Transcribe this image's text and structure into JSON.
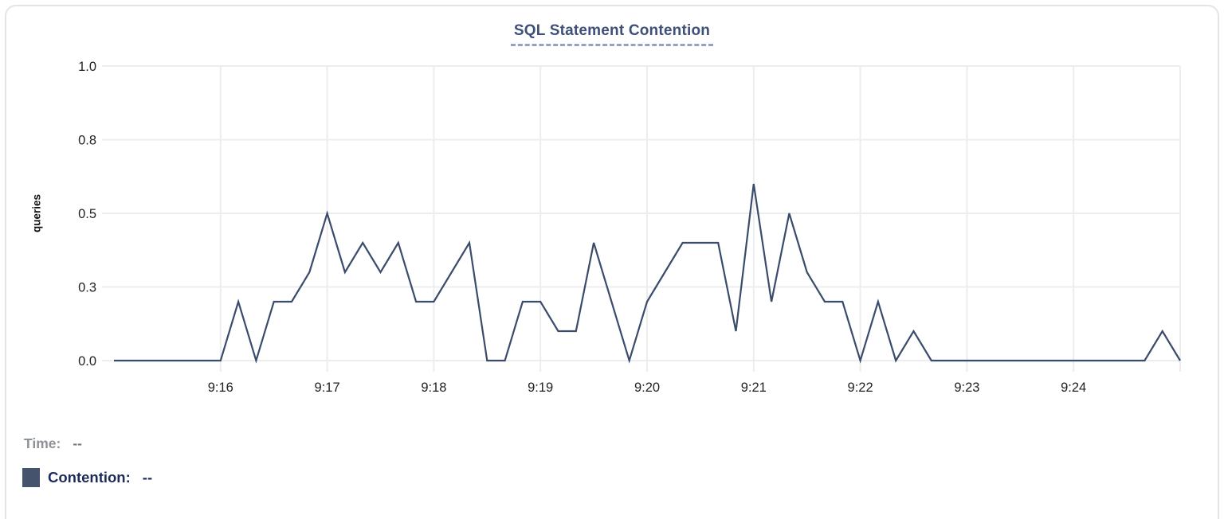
{
  "header": {
    "title": "SQL Statement Contention"
  },
  "legend": {
    "time": {
      "label": "Time:",
      "value": "--"
    },
    "contention": {
      "label": "Contention:",
      "value": "--"
    }
  },
  "colors": {
    "series_line": "#3a4b6b",
    "legend_swatch": "#46536d",
    "title_text": "#3f5078",
    "title_underline": "#979fc2",
    "grid": "#ededed",
    "tick_text": "#222222",
    "time_text": "#8e9196",
    "time_value": "#74787d",
    "contention_text": "#1c2b5a",
    "card_border": "#e3e4e6"
  },
  "chart_data": {
    "type": "line",
    "title": "SQL Statement Contention",
    "xlabel": "",
    "ylabel": "queries",
    "ylim": [
      0,
      1.0
    ],
    "grid": true,
    "legend_position": "bottom-left",
    "series_name": "Contention",
    "x": [
      "9:15:00",
      "9:15:10",
      "9:15:20",
      "9:15:30",
      "9:15:40",
      "9:15:50",
      "9:16:00",
      "9:16:10",
      "9:16:20",
      "9:16:30",
      "9:16:40",
      "9:16:50",
      "9:17:00",
      "9:17:10",
      "9:17:20",
      "9:17:30",
      "9:17:40",
      "9:17:50",
      "9:18:00",
      "9:18:10",
      "9:18:20",
      "9:18:30",
      "9:18:40",
      "9:18:50",
      "9:19:00",
      "9:19:10",
      "9:19:20",
      "9:19:30",
      "9:19:40",
      "9:19:50",
      "9:20:00",
      "9:20:10",
      "9:20:20",
      "9:20:30",
      "9:20:40",
      "9:20:50",
      "9:21:00",
      "9:21:10",
      "9:21:20",
      "9:21:30",
      "9:21:40",
      "9:21:50",
      "9:22:00",
      "9:22:10",
      "9:22:20",
      "9:22:30",
      "9:22:40",
      "9:22:50",
      "9:23:00",
      "9:23:10",
      "9:23:20",
      "9:23:30",
      "9:23:40",
      "9:23:50",
      "9:24:00",
      "9:24:10",
      "9:24:20",
      "9:24:30",
      "9:24:40",
      "9:24:50",
      "9:25:00"
    ],
    "values": [
      0,
      0,
      0,
      0,
      0,
      0,
      0,
      0.2,
      0,
      0.2,
      0.2,
      0.3,
      0.5,
      0.3,
      0.4,
      0.3,
      0.4,
      0.2,
      0.2,
      0.3,
      0.4,
      0,
      0,
      0.2,
      0.2,
      0.1,
      0.1,
      0.4,
      0.2,
      0,
      0.2,
      0.3,
      0.4,
      0.4,
      0.4,
      0.1,
      0.6,
      0.2,
      0.5,
      0.3,
      0.2,
      0.2,
      0,
      0.2,
      0,
      0.1,
      0,
      0,
      0,
      0,
      0,
      0,
      0,
      0,
      0,
      0,
      0,
      0,
      0,
      0.1,
      0
    ],
    "xticks": [
      "9:16",
      "9:17",
      "9:18",
      "9:19",
      "9:20",
      "9:21",
      "9:22",
      "9:23",
      "9:24"
    ],
    "yticks": [
      {
        "value": 0.0,
        "label": "0.0"
      },
      {
        "value": 0.25,
        "label": "0.3"
      },
      {
        "value": 0.5,
        "label": "0.5"
      },
      {
        "value": 0.75,
        "label": "0.8"
      },
      {
        "value": 1.0,
        "label": "1.0"
      }
    ]
  }
}
